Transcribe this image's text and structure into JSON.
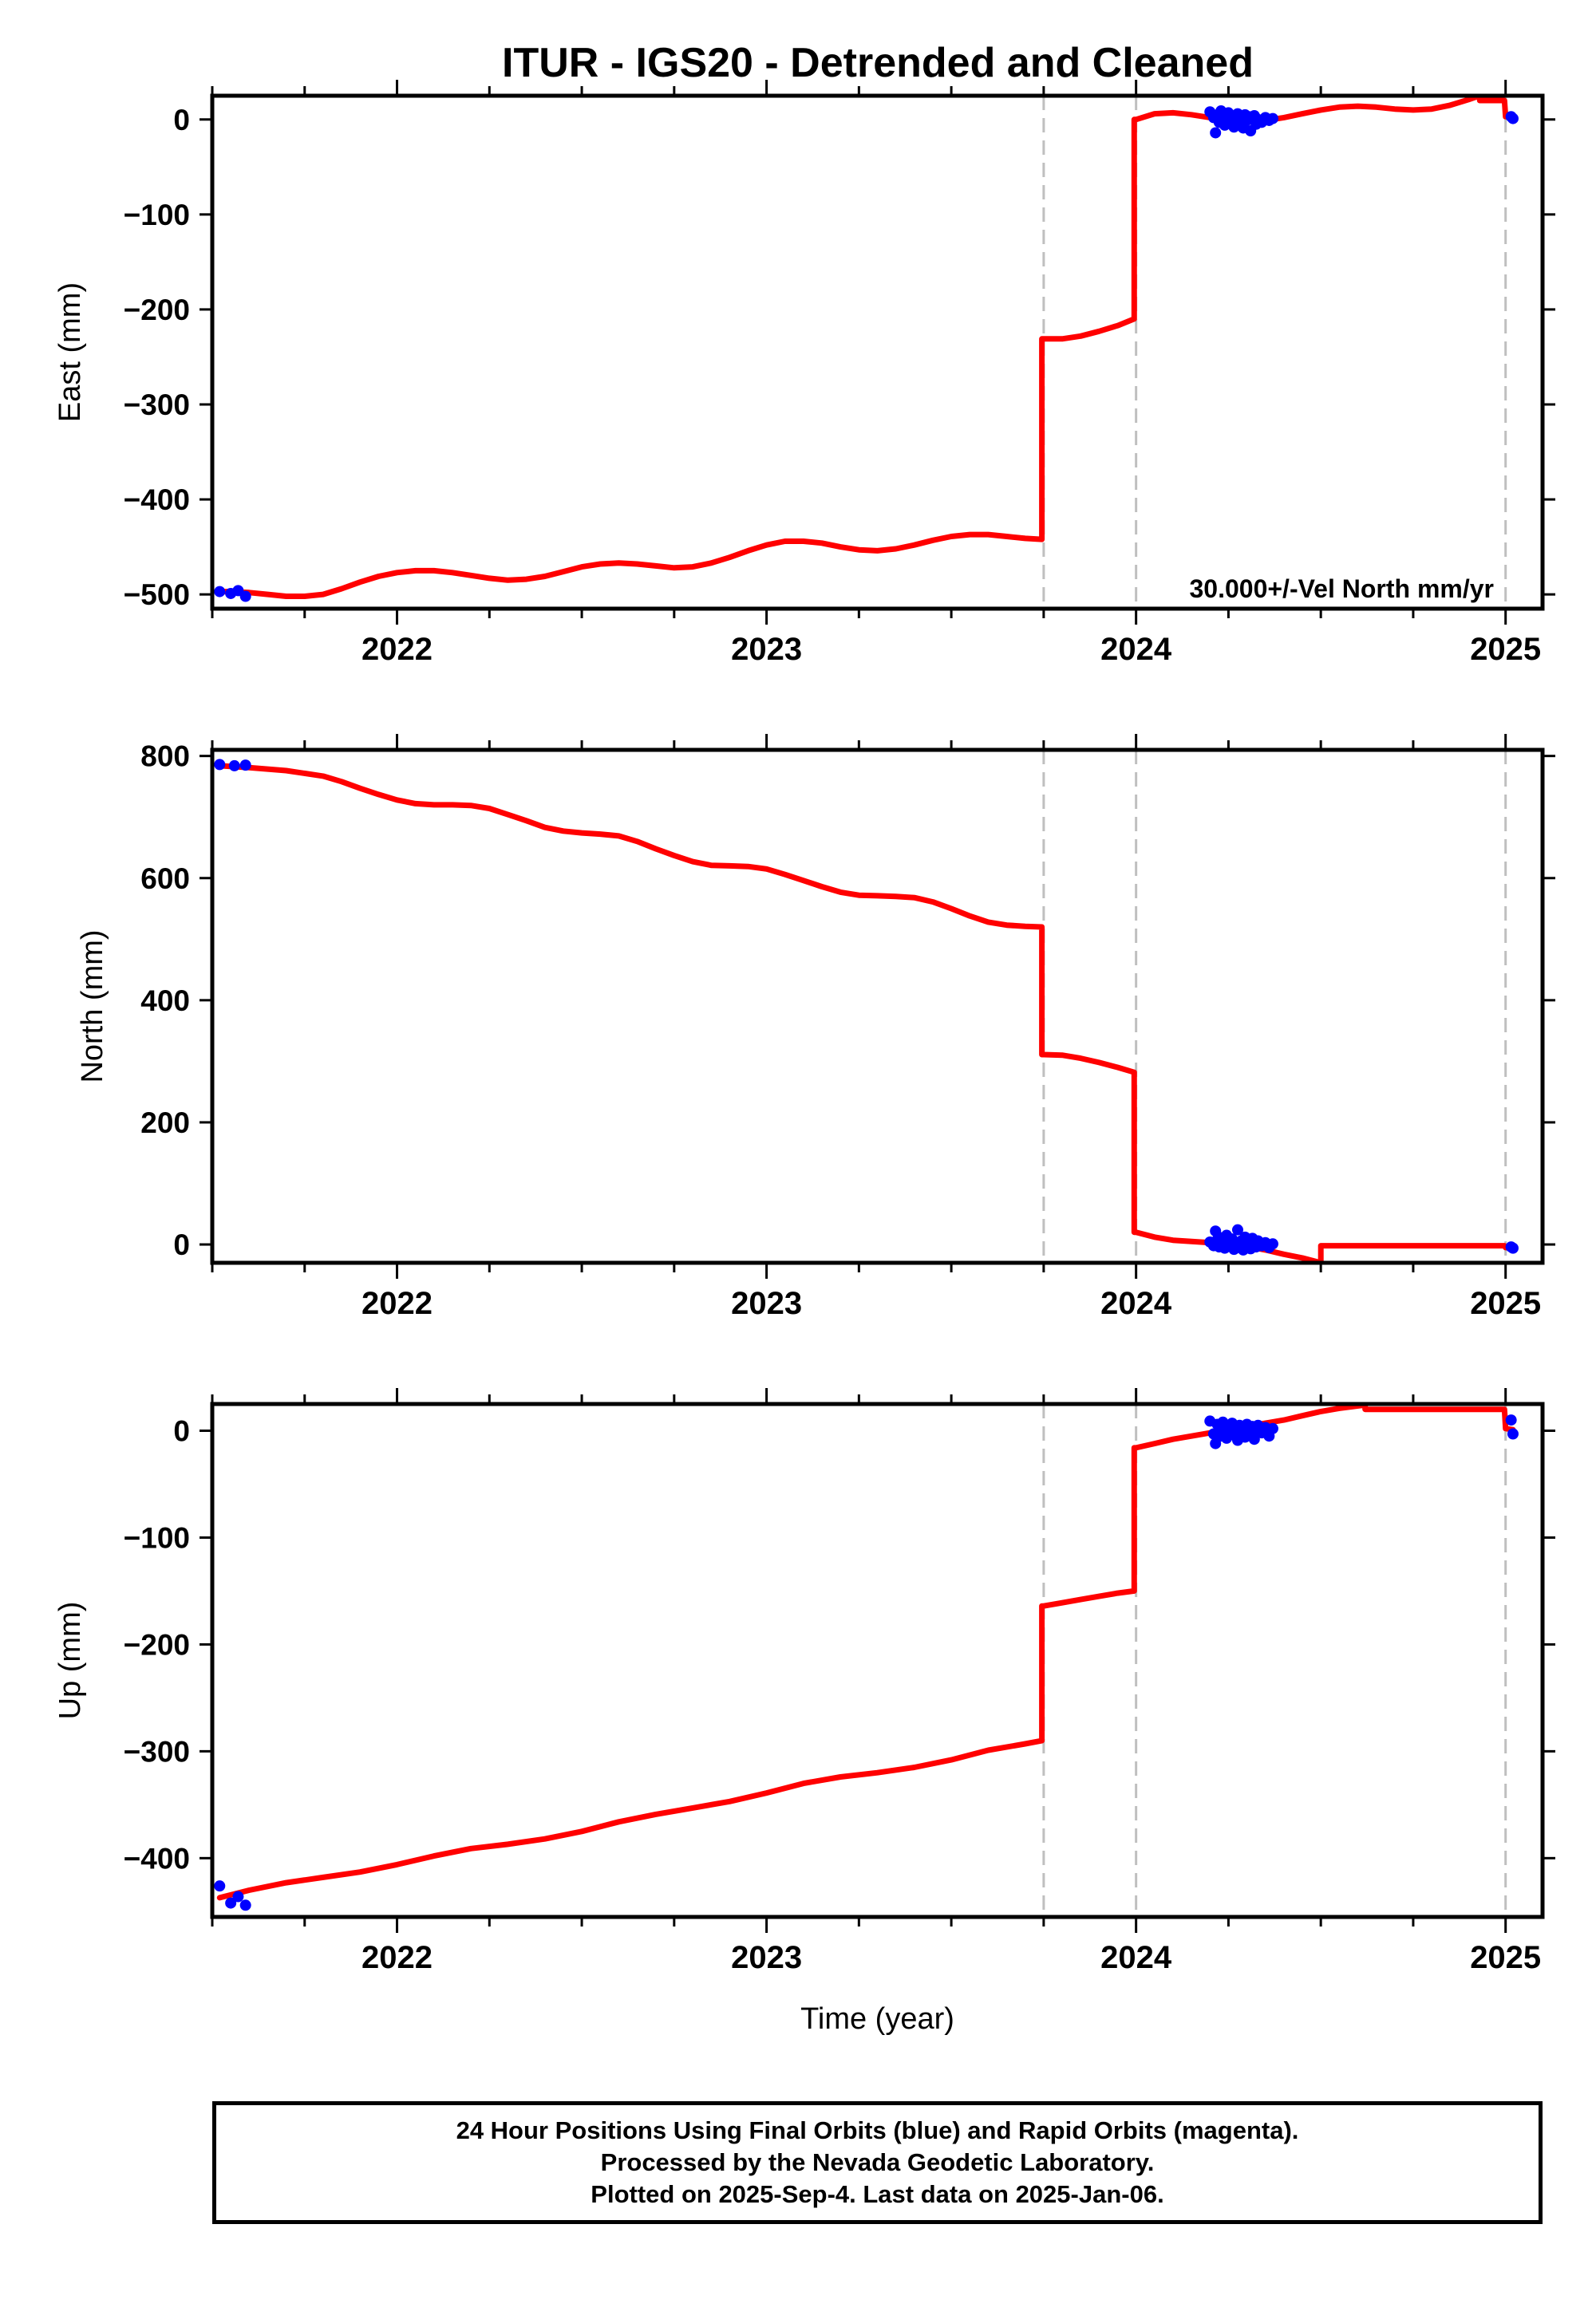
{
  "title": "ITUR - IGS20 - Detrended and Cleaned",
  "colors": {
    "model": "#ff0000",
    "final_orbits": "#0000ff",
    "event_line": "#bfbfbf",
    "frame": "#000000"
  },
  "velocity_label": "30.000+/-Vel North mm/yr",
  "footer": [
    "24 Hour Positions Using Final Orbits (blue) and Rapid Orbits (magenta).",
    "Processed by the Nevada Geodetic Laboratory.",
    "Plotted on 2025-Sep-4. Last data on 2025-Jan-06."
  ],
  "chart_data": [
    {
      "type": "line",
      "ylabel": "East (mm)",
      "xlim": [
        2021.5,
        2025.1
      ],
      "ylim": [
        -515,
        25
      ],
      "yticks": [
        0,
        -100,
        -200,
        -300,
        -400,
        -500
      ],
      "xticks": [
        2022,
        2023,
        2024,
        2025
      ],
      "event_lines": [
        2023.75,
        2024.0,
        2025.0
      ],
      "model": [
        [
          2021.52,
          -497
        ],
        [
          2021.55,
          -497
        ],
        [
          2021.6,
          -498
        ],
        [
          2021.65,
          -500
        ],
        [
          2021.7,
          -502
        ],
        [
          2021.75,
          -502
        ],
        [
          2021.8,
          -500
        ],
        [
          2021.85,
          -494
        ],
        [
          2021.9,
          -487
        ],
        [
          2021.95,
          -481
        ],
        [
          2022.0,
          -477
        ],
        [
          2022.05,
          -475
        ],
        [
          2022.1,
          -475
        ],
        [
          2022.15,
          -477
        ],
        [
          2022.2,
          -480
        ],
        [
          2022.25,
          -483
        ],
        [
          2022.3,
          -485
        ],
        [
          2022.35,
          -484
        ],
        [
          2022.4,
          -481
        ],
        [
          2022.45,
          -476
        ],
        [
          2022.5,
          -471
        ],
        [
          2022.55,
          -468
        ],
        [
          2022.6,
          -467
        ],
        [
          2022.65,
          -468
        ],
        [
          2022.7,
          -470
        ],
        [
          2022.75,
          -472
        ],
        [
          2022.8,
          -471
        ],
        [
          2022.85,
          -467
        ],
        [
          2022.9,
          -461
        ],
        [
          2022.95,
          -454
        ],
        [
          2023.0,
          -448
        ],
        [
          2023.05,
          -444
        ],
        [
          2023.1,
          -444
        ],
        [
          2023.15,
          -446
        ],
        [
          2023.2,
          -450
        ],
        [
          2023.25,
          -453
        ],
        [
          2023.3,
          -454
        ],
        [
          2023.35,
          -452
        ],
        [
          2023.4,
          -448
        ],
        [
          2023.45,
          -443
        ],
        [
          2023.5,
          -439
        ],
        [
          2023.55,
          -437
        ],
        [
          2023.6,
          -437
        ],
        [
          2023.65,
          -439
        ],
        [
          2023.7,
          -441
        ],
        [
          2023.745,
          -442
        ],
        null,
        [
          2023.75,
          -231
        ],
        [
          2023.8,
          -231
        ],
        [
          2023.85,
          -228
        ],
        [
          2023.9,
          -223
        ],
        [
          2023.95,
          -217
        ],
        [
          2023.995,
          -210
        ],
        null,
        [
          2024.0,
          0
        ],
        [
          2024.05,
          6
        ],
        [
          2024.1,
          7
        ],
        [
          2024.15,
          5
        ],
        [
          2024.2,
          2
        ],
        [
          2024.25,
          -1
        ],
        [
          2024.3,
          -2
        ],
        [
          2024.35,
          -1
        ],
        [
          2024.4,
          2
        ],
        [
          2024.45,
          6
        ],
        [
          2024.5,
          10
        ],
        [
          2024.55,
          13
        ],
        [
          2024.6,
          14
        ],
        [
          2024.65,
          13
        ],
        [
          2024.7,
          11
        ],
        [
          2024.75,
          10
        ],
        [
          2024.8,
          11
        ],
        [
          2024.85,
          15
        ],
        [
          2024.9,
          21
        ],
        [
          2024.93,
          25
        ],
        null,
        [
          2024.997,
          20
        ],
        [
          2025.0,
          3
        ],
        [
          2025.02,
          2
        ]
      ],
      "points": [
        [
          2021.52,
          -497
        ],
        [
          2021.55,
          -499
        ],
        [
          2021.57,
          -496
        ],
        [
          2021.59,
          -502
        ],
        [
          2024.2,
          8
        ],
        [
          2024.21,
          2
        ],
        [
          2024.215,
          -14
        ],
        [
          2024.22,
          5
        ],
        [
          2024.225,
          -3
        ],
        [
          2024.23,
          9
        ],
        [
          2024.235,
          1
        ],
        [
          2024.24,
          -6
        ],
        [
          2024.245,
          4
        ],
        [
          2024.25,
          7
        ],
        [
          2024.255,
          -2
        ],
        [
          2024.26,
          3
        ],
        [
          2024.265,
          -8
        ],
        [
          2024.27,
          0
        ],
        [
          2024.275,
          6
        ],
        [
          2024.28,
          -4
        ],
        [
          2024.285,
          2
        ],
        [
          2024.29,
          -9
        ],
        [
          2024.295,
          5
        ],
        [
          2024.3,
          -1
        ],
        [
          2024.305,
          3
        ],
        [
          2024.31,
          -12
        ],
        [
          2024.315,
          1
        ],
        [
          2024.32,
          4
        ],
        [
          2024.325,
          -5
        ],
        [
          2024.33,
          0
        ],
        [
          2024.34,
          -3
        ],
        [
          2024.35,
          2
        ],
        [
          2024.36,
          -1
        ],
        [
          2024.37,
          1
        ],
        [
          2025.015,
          3
        ],
        [
          2025.02,
          1
        ]
      ]
    },
    {
      "type": "line",
      "ylabel": "North (mm)",
      "xlim": [
        2021.5,
        2025.1
      ],
      "ylim": [
        -30,
        810
      ],
      "yticks": [
        800,
        600,
        400,
        200,
        0
      ],
      "xticks": [
        2022,
        2023,
        2024,
        2025
      ],
      "event_lines": [
        2023.75,
        2024.0,
        2025.0
      ],
      "model": [
        [
          2021.52,
          784
        ],
        [
          2021.6,
          781
        ],
        [
          2021.7,
          776
        ],
        [
          2021.8,
          767
        ],
        [
          2021.85,
          758
        ],
        [
          2021.9,
          747
        ],
        [
          2021.95,
          737
        ],
        [
          2022.0,
          728
        ],
        [
          2022.05,
          722
        ],
        [
          2022.1,
          720
        ],
        [
          2022.15,
          720
        ],
        [
          2022.2,
          719
        ],
        [
          2022.25,
          714
        ],
        [
          2022.3,
          704
        ],
        [
          2022.35,
          694
        ],
        [
          2022.4,
          683
        ],
        [
          2022.45,
          677
        ],
        [
          2022.5,
          674
        ],
        [
          2022.55,
          672
        ],
        [
          2022.6,
          669
        ],
        [
          2022.65,
          660
        ],
        [
          2022.7,
          648
        ],
        [
          2022.75,
          637
        ],
        [
          2022.8,
          627
        ],
        [
          2022.85,
          621
        ],
        [
          2022.9,
          620
        ],
        [
          2022.95,
          619
        ],
        [
          2023.0,
          615
        ],
        [
          2023.05,
          606
        ],
        [
          2023.1,
          596
        ],
        [
          2023.15,
          586
        ],
        [
          2023.2,
          577
        ],
        [
          2023.25,
          572
        ],
        [
          2023.3,
          571
        ],
        [
          2023.35,
          570
        ],
        [
          2023.4,
          568
        ],
        [
          2023.45,
          561
        ],
        [
          2023.5,
          550
        ],
        [
          2023.55,
          538
        ],
        [
          2023.6,
          528
        ],
        [
          2023.65,
          523
        ],
        [
          2023.7,
          521
        ],
        [
          2023.745,
          520
        ],
        null,
        [
          2023.75,
          311
        ],
        [
          2023.8,
          310
        ],
        [
          2023.85,
          305
        ],
        [
          2023.9,
          298
        ],
        [
          2023.95,
          290
        ],
        [
          2023.995,
          282
        ],
        null,
        [
          2024.0,
          20
        ],
        [
          2024.05,
          12
        ],
        [
          2024.1,
          7
        ],
        [
          2024.15,
          5
        ],
        [
          2024.2,
          3
        ],
        [
          2024.25,
          1
        ],
        [
          2024.3,
          -3
        ],
        [
          2024.35,
          -9
        ],
        [
          2024.4,
          -16
        ],
        [
          2024.45,
          -22
        ],
        [
          2024.5,
          -30
        ],
        null,
        [
          2024.997,
          -2
        ],
        [
          2025.0,
          -5
        ],
        [
          2025.02,
          -6
        ]
      ],
      "points": [
        [
          2021.52,
          786
        ],
        [
          2021.56,
          784
        ],
        [
          2021.59,
          785
        ],
        [
          2024.2,
          4
        ],
        [
          2024.21,
          -2
        ],
        [
          2024.215,
          22
        ],
        [
          2024.22,
          8
        ],
        [
          2024.225,
          -4
        ],
        [
          2024.23,
          11
        ],
        [
          2024.235,
          3
        ],
        [
          2024.24,
          -6
        ],
        [
          2024.245,
          15
        ],
        [
          2024.25,
          5
        ],
        [
          2024.255,
          -3
        ],
        [
          2024.26,
          9
        ],
        [
          2024.265,
          -8
        ],
        [
          2024.27,
          2
        ],
        [
          2024.275,
          24
        ],
        [
          2024.28,
          -5
        ],
        [
          2024.285,
          6
        ],
        [
          2024.29,
          -9
        ],
        [
          2024.295,
          12
        ],
        [
          2024.3,
          0
        ],
        [
          2024.305,
          4
        ],
        [
          2024.31,
          -7
        ],
        [
          2024.315,
          10
        ],
        [
          2024.32,
          2
        ],
        [
          2024.325,
          -4
        ],
        [
          2024.33,
          6
        ],
        [
          2024.34,
          -2
        ],
        [
          2024.35,
          3
        ],
        [
          2024.36,
          -5
        ],
        [
          2024.37,
          1
        ],
        [
          2025.015,
          -4
        ],
        [
          2025.02,
          -6
        ]
      ]
    },
    {
      "type": "line",
      "ylabel": "Up (mm)",
      "xlabel": "Time (year)",
      "xlim": [
        2021.5,
        2025.1
      ],
      "ylim": [
        -455,
        25
      ],
      "yticks": [
        0,
        -100,
        -200,
        -300,
        -400
      ],
      "xticks": [
        2022,
        2023,
        2024,
        2025
      ],
      "event_lines": [
        2023.75,
        2024.0,
        2025.0
      ],
      "model": [
        [
          2021.52,
          -437
        ],
        [
          2021.6,
          -430
        ],
        [
          2021.7,
          -423
        ],
        [
          2021.8,
          -418
        ],
        [
          2021.9,
          -413
        ],
        [
          2022.0,
          -406
        ],
        [
          2022.1,
          -398
        ],
        [
          2022.2,
          -391
        ],
        [
          2022.3,
          -387
        ],
        [
          2022.4,
          -382
        ],
        [
          2022.5,
          -375
        ],
        [
          2022.6,
          -366
        ],
        [
          2022.7,
          -359
        ],
        [
          2022.8,
          -353
        ],
        [
          2022.9,
          -347
        ],
        [
          2023.0,
          -339
        ],
        [
          2023.1,
          -330
        ],
        [
          2023.2,
          -324
        ],
        [
          2023.3,
          -320
        ],
        [
          2023.4,
          -315
        ],
        [
          2023.5,
          -308
        ],
        [
          2023.6,
          -299
        ],
        [
          2023.7,
          -293
        ],
        [
          2023.745,
          -290
        ],
        null,
        [
          2023.75,
          -164
        ],
        [
          2023.8,
          -161
        ],
        [
          2023.85,
          -158
        ],
        [
          2023.9,
          -155
        ],
        [
          2023.95,
          -152
        ],
        [
          2023.995,
          -150
        ],
        null,
        [
          2024.0,
          -16
        ],
        [
          2024.05,
          -12
        ],
        [
          2024.1,
          -8
        ],
        [
          2024.15,
          -5
        ],
        [
          2024.2,
          -2
        ],
        [
          2024.25,
          1
        ],
        [
          2024.3,
          4
        ],
        [
          2024.35,
          7
        ],
        [
          2024.4,
          10
        ],
        [
          2024.45,
          14
        ],
        [
          2024.5,
          18
        ],
        [
          2024.55,
          21
        ],
        [
          2024.62,
          24
        ],
        null,
        [
          2024.997,
          20
        ],
        [
          2025.0,
          2
        ],
        [
          2025.02,
          1
        ]
      ],
      "points": [
        [
          2021.52,
          -426
        ],
        [
          2021.55,
          -442
        ],
        [
          2021.57,
          -436
        ],
        [
          2021.59,
          -444
        ],
        [
          2024.2,
          9
        ],
        [
          2024.21,
          -3
        ],
        [
          2024.215,
          -12
        ],
        [
          2024.22,
          6
        ],
        [
          2024.225,
          2
        ],
        [
          2024.23,
          -5
        ],
        [
          2024.235,
          8
        ],
        [
          2024.24,
          1
        ],
        [
          2024.245,
          -7
        ],
        [
          2024.25,
          4
        ],
        [
          2024.255,
          0
        ],
        [
          2024.26,
          7
        ],
        [
          2024.265,
          -4
        ],
        [
          2024.27,
          3
        ],
        [
          2024.275,
          -9
        ],
        [
          2024.28,
          5
        ],
        [
          2024.285,
          -1
        ],
        [
          2024.29,
          2
        ],
        [
          2024.295,
          -6
        ],
        [
          2024.3,
          6
        ],
        [
          2024.305,
          0
        ],
        [
          2024.31,
          -3
        ],
        [
          2024.315,
          4
        ],
        [
          2024.32,
          -8
        ],
        [
          2024.325,
          1
        ],
        [
          2024.33,
          5
        ],
        [
          2024.34,
          -2
        ],
        [
          2024.35,
          3
        ],
        [
          2024.36,
          -5
        ],
        [
          2024.37,
          2
        ],
        [
          2025.015,
          10
        ],
        [
          2025.02,
          -3
        ]
      ]
    }
  ]
}
